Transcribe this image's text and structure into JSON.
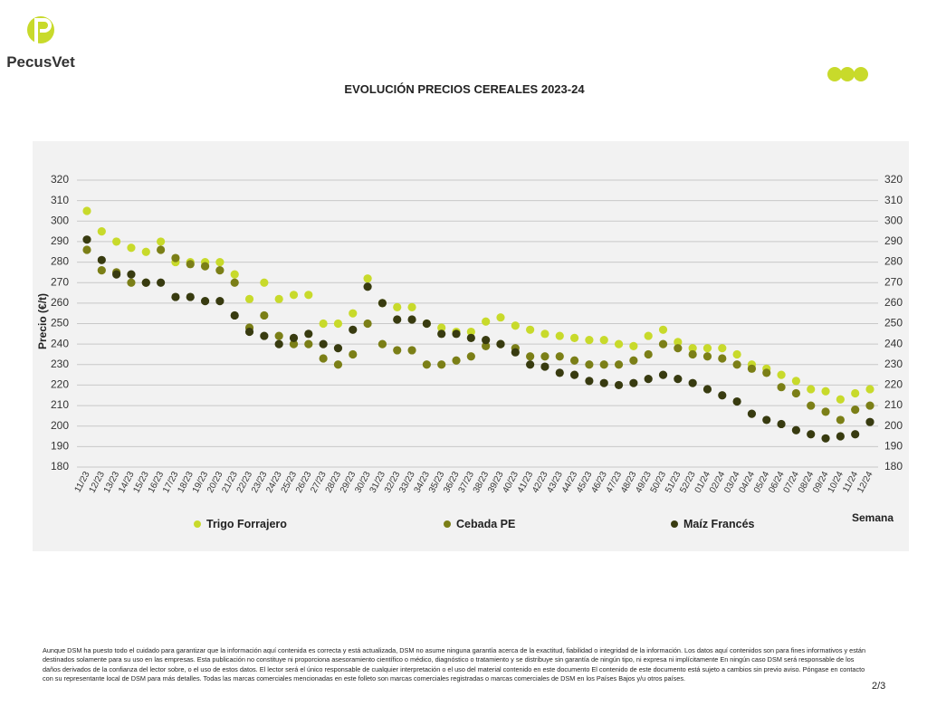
{
  "header": {
    "logo_text": "PecusVet"
  },
  "chart_data": {
    "type": "scatter",
    "title": "EVOLUCIÓN PRECIOS CEREALES 2023-24",
    "ylabel": "Precio (€/t)",
    "xlabel": "Semana",
    "categories": [
      "11/23",
      "12/23",
      "13/23",
      "14/23",
      "15/23",
      "16/23",
      "17/23",
      "18/23",
      "19/23",
      "20/23",
      "21/23",
      "22/23",
      "23/23",
      "24/23",
      "25/23",
      "26/23",
      "27/23",
      "28/23",
      "29/23",
      "30/23",
      "31/23",
      "32/23",
      "33/23",
      "34/23",
      "35/23",
      "36/23",
      "37/23",
      "38/23",
      "39/23",
      "40/23",
      "41/23",
      "42/23",
      "43/23",
      "44/23",
      "45/23",
      "46/23",
      "47/23",
      "48/23",
      "49/23",
      "50/23",
      "51/23",
      "52/23",
      "01/24",
      "02/24",
      "03/24",
      "04/24",
      "05/24",
      "06/24",
      "07/24",
      "08/24",
      "09/24",
      "10/24",
      "11/24",
      "12/24"
    ],
    "series": [
      {
        "name": "Trigo Forrajero",
        "color": "#c8da2b",
        "values": [
          305,
          295,
          290,
          287,
          285,
          290,
          280,
          280,
          280,
          280,
          274,
          262,
          270,
          262,
          264,
          264,
          250,
          250,
          255,
          272,
          260,
          258,
          258,
          250,
          248,
          246,
          246,
          251,
          253,
          249,
          247,
          245,
          244,
          243,
          242,
          242,
          240,
          239,
          244,
          247,
          241,
          238,
          238,
          238,
          235,
          230,
          228,
          225,
          222,
          218,
          217,
          213,
          216,
          218
        ]
      },
      {
        "name": "Cebada PE",
        "color": "#7b7f17",
        "values": [
          286,
          276,
          275,
          270,
          270,
          286,
          282,
          279,
          278,
          276,
          270,
          248,
          254,
          244,
          240,
          240,
          233,
          230,
          235,
          250,
          240,
          237,
          237,
          230,
          230,
          232,
          234,
          239,
          240,
          238,
          234,
          234,
          234,
          232,
          230,
          230,
          230,
          232,
          235,
          240,
          238,
          235,
          234,
          233,
          230,
          228,
          226,
          219,
          216,
          210,
          207,
          203,
          208,
          210
        ]
      },
      {
        "name": "Maíz Francés",
        "color": "#383b10",
        "values": [
          291,
          281,
          274,
          274,
          270,
          270,
          263,
          263,
          261,
          261,
          254,
          246,
          244,
          240,
          243,
          245,
          240,
          238,
          247,
          268,
          260,
          252,
          252,
          250,
          245,
          245,
          243,
          242,
          240,
          236,
          230,
          229,
          226,
          225,
          222,
          221,
          220,
          221,
          223,
          225,
          223,
          221,
          218,
          215,
          212,
          206,
          203,
          201,
          198,
          196,
          194,
          195,
          196,
          202
        ]
      }
    ],
    "ylim": [
      180,
      320
    ],
    "yticks": [
      180,
      190,
      200,
      210,
      220,
      230,
      240,
      250,
      260,
      270,
      280,
      290,
      300,
      310,
      320
    ],
    "y2lim": [
      180,
      320
    ],
    "y2ticks": [
      180,
      190,
      200,
      210,
      220,
      230,
      240,
      250,
      260,
      270,
      280,
      290,
      300,
      310,
      320
    ],
    "grid": true
  },
  "footer": {
    "disclaimer": "Aunque DSM ha puesto todo el cuidado para garantizar que la información aquí contenida es correcta y está actualizada, DSM no asume ninguna garantía acerca de la exactitud, fiabilidad o integridad de la información. Los datos aquí contenidos son para fines informativos y están destinados solamente para su uso en las empresas. Esta publicación no constituye ni proporciona asesoramiento científico o médico, diagnóstico o tratamiento y se distribuye sin garantía de ningún tipo, ni expresa ni implícitamente En ningún caso DSM será responsable de los daños derivados de la confianza del lector sobre, o el uso de estos datos. El lector será el único responsable de cualquier interpretación o el uso del material contenido en este documento El contenido de este documento está sujeto a cambios sin previo aviso. Póngase en contacto con su representante local de DSM para más detalles. Todas las marcas comerciales mencionadas en este folleto son marcas comerciales registradas o marcas comerciales de DSM en los Países Bajos y/u otros países.",
    "page_number": "2/3"
  }
}
